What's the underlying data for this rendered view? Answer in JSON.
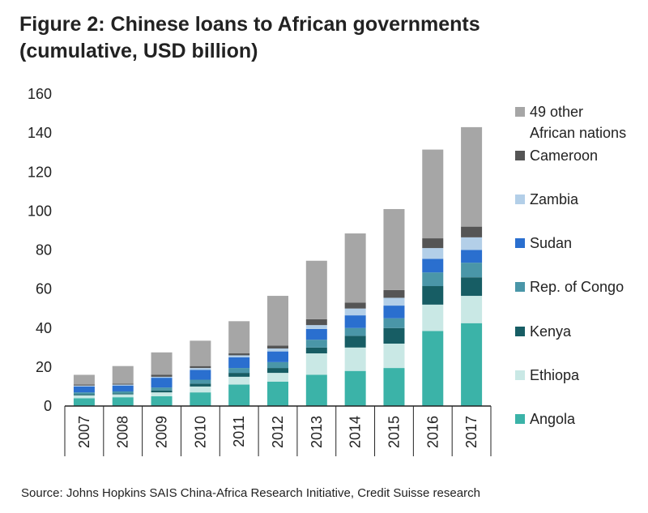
{
  "title_line1": "Figure 2: Chinese loans to African governments",
  "title_line2": "(cumulative, USD billion)",
  "source": "Source: Johns Hopkins SAIS China-Africa Research Initiative, Credit Suisse research",
  "chart_data": {
    "type": "bar",
    "stacked": true,
    "title": "Figure 2: Chinese loans to African governments (cumulative, USD billion)",
    "categories": [
      "2007",
      "2008",
      "2009",
      "2010",
      "2011",
      "2012",
      "2013",
      "2014",
      "2015",
      "2016",
      "2017"
    ],
    "ylim": [
      0,
      160
    ],
    "yticks": [
      0,
      20,
      40,
      60,
      80,
      100,
      120,
      140,
      160
    ],
    "grid": false,
    "legend_position": "right",
    "series": [
      {
        "name": "Angola",
        "color": "#3bb3a8",
        "values": [
          4,
          4.5,
          5,
          7,
          11,
          12.5,
          16,
          18,
          19.5,
          38.5,
          42.5
        ]
      },
      {
        "name": "Ethiopa",
        "color": "#c9e8e5",
        "values": [
          1.5,
          1.5,
          2,
          3,
          4,
          4.5,
          11,
          12,
          12.5,
          13.5,
          14
        ]
      },
      {
        "name": "Kenya",
        "color": "#175d64",
        "values": [
          0.5,
          0.5,
          1,
          1.5,
          2,
          2.5,
          3,
          6,
          8,
          9.5,
          9.5
        ]
      },
      {
        "name": "Rep. of Congo",
        "color": "#4a96a8",
        "values": [
          1,
          1,
          1.5,
          2,
          2.5,
          3,
          4,
          4,
          5,
          7,
          7.5
        ]
      },
      {
        "name": "Sudan",
        "color": "#2a6fcf",
        "values": [
          3,
          3,
          5,
          5,
          5.5,
          5.5,
          5.5,
          6.5,
          6.5,
          7,
          6.5
        ]
      },
      {
        "name": "Zambia",
        "color": "#b3cfe8",
        "values": [
          0.5,
          0.5,
          0.5,
          1,
          1,
          1.5,
          2,
          3.5,
          4,
          5.5,
          6.5
        ]
      },
      {
        "name": "Cameroon",
        "color": "#555555",
        "values": [
          0.5,
          0.5,
          1,
          1,
          1,
          1.5,
          3,
          3,
          4,
          5,
          5.5
        ]
      },
      {
        "name": "49 other African nations",
        "color": "#a6a6a6",
        "values": [
          5,
          9,
          11.5,
          13,
          16.5,
          25.5,
          30,
          35.5,
          41.5,
          45.5,
          51
        ]
      }
    ],
    "legend_order": [
      "49 other African nations",
      "Cameroon",
      "Zambia",
      "Sudan",
      "Rep. of Congo",
      "Kenya",
      "Ethiopa",
      "Angola"
    ],
    "legend_line_breaks": {
      "49 other African nations": [
        "49 other",
        "African nations"
      ]
    }
  }
}
